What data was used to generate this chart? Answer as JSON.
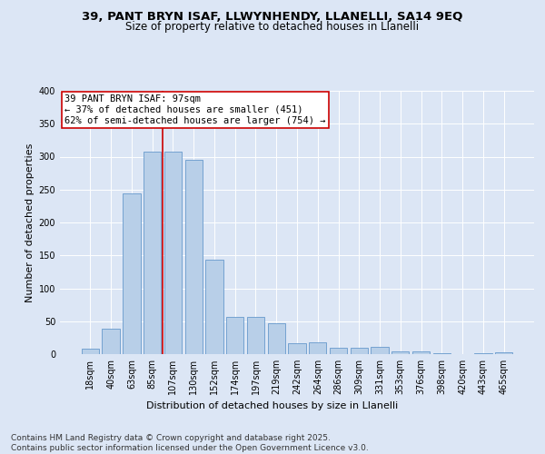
{
  "title_line1": "39, PANT BRYN ISAF, LLWYNHENDY, LLANELLI, SA14 9EQ",
  "title_line2": "Size of property relative to detached houses in Llanelli",
  "xlabel": "Distribution of detached houses by size in Llanelli",
  "ylabel": "Number of detached properties",
  "bar_labels": [
    "18sqm",
    "40sqm",
    "63sqm",
    "85sqm",
    "107sqm",
    "130sqm",
    "152sqm",
    "174sqm",
    "197sqm",
    "219sqm",
    "242sqm",
    "264sqm",
    "286sqm",
    "309sqm",
    "331sqm",
    "353sqm",
    "376sqm",
    "398sqm",
    "420sqm",
    "443sqm",
    "465sqm"
  ],
  "bar_values": [
    8,
    39,
    244,
    307,
    307,
    295,
    144,
    57,
    57,
    47,
    17,
    18,
    9,
    9,
    11,
    4,
    4,
    2,
    0,
    2,
    3
  ],
  "bar_color": "#b8cfe8",
  "bar_edge_color": "#6699cc",
  "vline_color": "#cc0000",
  "vline_pos": 3.5,
  "annotation_text": "39 PANT BRYN ISAF: 97sqm\n← 37% of detached houses are smaller (451)\n62% of semi-detached houses are larger (754) →",
  "ylim": [
    0,
    400
  ],
  "yticks": [
    0,
    50,
    100,
    150,
    200,
    250,
    300,
    350,
    400
  ],
  "background_color": "#dce6f5",
  "plot_bg_color": "#dce6f5",
  "footnote": "Contains HM Land Registry data © Crown copyright and database right 2025.\nContains public sector information licensed under the Open Government Licence v3.0.",
  "title_fontsize": 9.5,
  "subtitle_fontsize": 8.5,
  "axis_label_fontsize": 8,
  "tick_fontsize": 7,
  "annotation_fontsize": 7.5,
  "footnote_fontsize": 6.5
}
